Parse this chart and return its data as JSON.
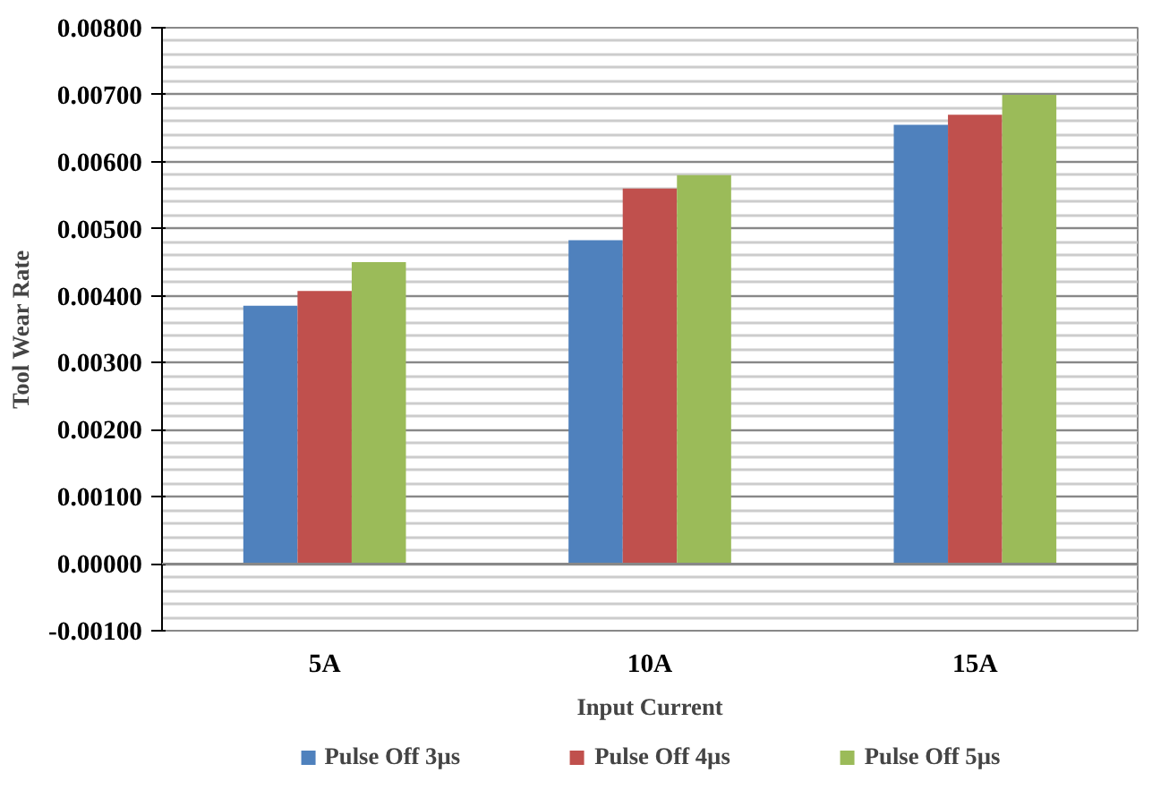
{
  "chart_data": {
    "type": "bar",
    "xlabel": "Input Current",
    "ylabel": "Tool Wear Rate",
    "categories": [
      "5A",
      "10A",
      "15A"
    ],
    "series": [
      {
        "name": "Pulse Off 3µs",
        "color": "#4f81bd",
        "values": [
          0.00385,
          0.00483,
          0.00655
        ]
      },
      {
        "name": "Pulse Off 4µs",
        "color": "#c0504d",
        "values": [
          0.00407,
          0.0056,
          0.0067
        ]
      },
      {
        "name": "Pulse Off 5µs",
        "color": "#9bbb59",
        "values": [
          0.0045,
          0.0058,
          0.007
        ]
      }
    ],
    "ylim": [
      -0.001,
      0.008
    ],
    "yticks": [
      {
        "value": -0.001,
        "label": "-0.00100"
      },
      {
        "value": 0,
        "label": "0.00000"
      },
      {
        "value": 0.001,
        "label": "0.00100"
      },
      {
        "value": 0.002,
        "label": "0.00200"
      },
      {
        "value": 0.003,
        "label": "0.00300"
      },
      {
        "value": 0.004,
        "label": "0.00400"
      },
      {
        "value": 0.005,
        "label": "0.00500"
      },
      {
        "value": 0.006,
        "label": "0.00600"
      },
      {
        "value": 0.007,
        "label": "0.00700"
      },
      {
        "value": 0.008,
        "label": "0.00800"
      }
    ],
    "grid": "y",
    "legend": "bottom"
  }
}
